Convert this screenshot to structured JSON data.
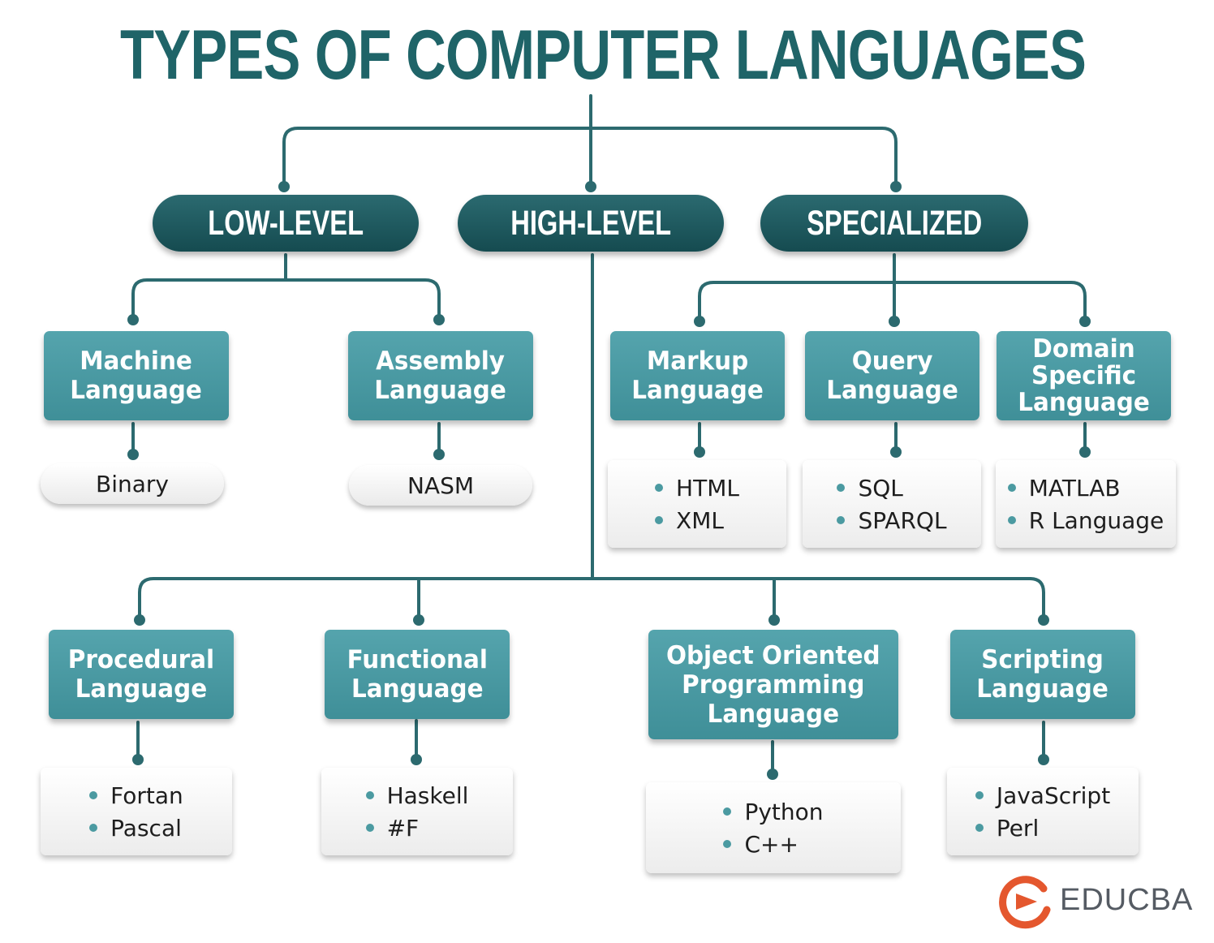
{
  "title": "TYPES OF COMPUTER LANGUAGES",
  "colors": {
    "title": "#1f6468",
    "category_pill": "#1d5a5f",
    "type_box": "#4a9aa3",
    "connector": "#2c6a6f",
    "bullet": "#4b9aa1",
    "logo": "#e4572e"
  },
  "categories": {
    "low": "LOW-LEVEL",
    "high": "HIGH-LEVEL",
    "special": "SPECIALIZED"
  },
  "low_level": {
    "machine": {
      "label": "Machine\nLanguage",
      "example": "Binary"
    },
    "assembly": {
      "label": "Assembly\nLanguage",
      "example": "NASM"
    }
  },
  "specialized": {
    "markup": {
      "label": "Markup\nLanguage",
      "examples": [
        "HTML",
        "XML"
      ]
    },
    "query": {
      "label": "Query\nLanguage",
      "examples": [
        "SQL",
        "SPARQL"
      ]
    },
    "domain": {
      "label": "Domain\nSpecific\nLanguage",
      "examples": [
        "MATLAB",
        "R Language"
      ]
    }
  },
  "high_level": {
    "procedural": {
      "label": "Procedural\nLanguage",
      "examples": [
        "Fortan",
        "Pascal"
      ]
    },
    "functional": {
      "label": "Functional\nLanguage",
      "examples": [
        "Haskell",
        "#F"
      ]
    },
    "oop": {
      "label": "Object Oriented\nProgramming\nLanguage",
      "examples": [
        "Python",
        "C++"
      ]
    },
    "scripting": {
      "label": "Scripting\nLanguage",
      "examples": [
        "JavaScript",
        "Perl"
      ]
    }
  },
  "brand": {
    "name": "EDUCBA",
    "icon": "educba-logo-icon"
  }
}
